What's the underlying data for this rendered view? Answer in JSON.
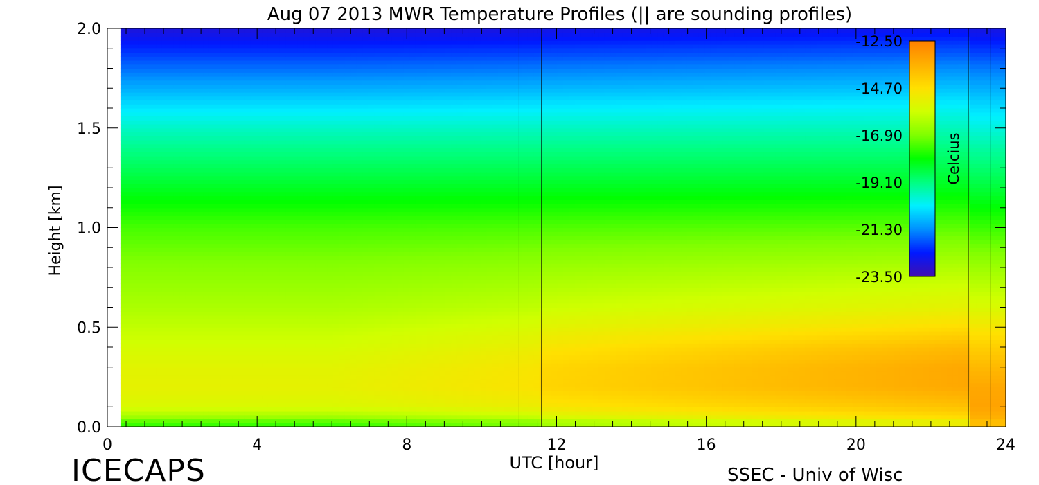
{
  "chart_data": {
    "type": "heatmap",
    "title": "Aug 07 2013 MWR Temperature Profiles (|| are sounding profiles)",
    "xlabel": "UTC [hour]",
    "ylabel": "Height [km]",
    "xlim": [
      0,
      24
    ],
    "ylim": [
      0,
      2.0
    ],
    "x_ticks": [
      "0",
      "4",
      "8",
      "12",
      "16",
      "20",
      "24"
    ],
    "y_ticks": [
      "0.0",
      "0.5",
      "1.0",
      "1.5",
      "2.0"
    ],
    "data_start_hour": 0.35,
    "data_end_hour": 24,
    "sounding_hours": [
      11.0,
      11.6,
      23.0,
      23.6
    ],
    "colorbar": {
      "label": "Celcius",
      "min": -23.5,
      "max": -12.5,
      "ticks": [
        "-12.50",
        "-14.70",
        "-16.90",
        "-19.10",
        "-21.30",
        "-23.50"
      ],
      "colors": [
        "#4010b0",
        "#0018ff",
        "#0090ff",
        "#00f0ff",
        "#00ff80",
        "#00ff00",
        "#80ff00",
        "#d0ff00",
        "#ffe000",
        "#ffb000",
        "#ff8000"
      ]
    },
    "profile_heights_km": [
      0.0,
      0.02,
      0.05,
      0.1,
      0.2,
      0.3,
      0.4,
      0.5,
      0.6,
      0.8,
      1.0,
      1.2,
      1.4,
      1.5,
      1.6,
      1.8,
      2.0
    ],
    "profile_early_celsius": [
      -17.5,
      -17.5,
      -16.5,
      -15.6,
      -15.3,
      -15.4,
      -15.7,
      -16.0,
      -16.3,
      -16.8,
      -17.4,
      -18.3,
      -19.2,
      -19.7,
      -20.3,
      -21.6,
      -22.9
    ],
    "profile_late_celsius": [
      -14.8,
      -15.4,
      -14.6,
      -14.0,
      -13.4,
      -13.4,
      -13.8,
      -14.6,
      -15.3,
      -16.2,
      -17.2,
      -18.2,
      -19.1,
      -19.6,
      -20.1,
      -21.3,
      -22.6
    ],
    "profile_end_celsius": [
      -13.8,
      -14.0,
      -13.6,
      -13.3,
      -13.4,
      -13.8,
      -14.3,
      -14.9,
      -15.6,
      -16.5,
      -17.5,
      -18.5,
      -19.4,
      -19.9,
      -20.4,
      -21.5,
      -22.8
    ]
  },
  "footer": {
    "left_logo": "ICECAPS",
    "right_credit": "SSEC - Univ of Wisc"
  }
}
